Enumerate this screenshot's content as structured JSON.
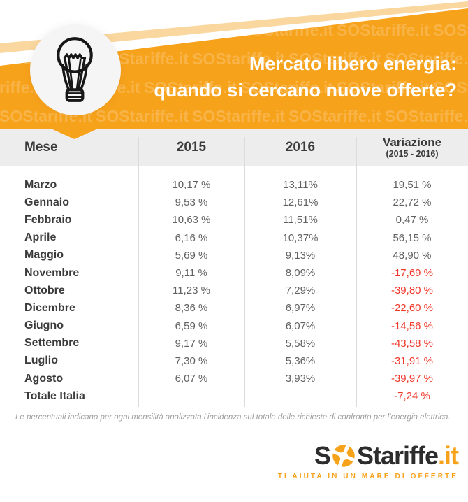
{
  "banner": {
    "title_line1": "Mercato libero energia:",
    "title_line2": "quando si cercano nuove offerte?",
    "watermark": {
      "text": "SOStariffe.it",
      "rows": 4,
      "cols": 6
    }
  },
  "colors": {
    "orange": "#F7A21B",
    "pale_orange": "#FAD79E",
    "header_bg": "#EDEDED",
    "dark_text": "#3B3B3B",
    "value_text": "#616161",
    "negative_red": "#EF382A",
    "footnote_text": "#9C9C9C",
    "logo_dark": "#2D2D2D"
  },
  "table": {
    "header": {
      "mese": "Mese",
      "y2015": "2015",
      "y2016": "2016",
      "variazione": "Variazione",
      "variazione_sub": "(2015 - 2016)"
    },
    "rows": [
      {
        "mese": "Marzo",
        "v2015": "10,17 %",
        "v2016": "13,11%",
        "variazione": "19,51 %",
        "negative": false
      },
      {
        "mese": "Gennaio",
        "v2015": "9,53 %",
        "v2016": "12,61%",
        "variazione": "22,72 %",
        "negative": false
      },
      {
        "mese": "Febbraio",
        "v2015": "10,63 %",
        "v2016": "11,51%",
        "variazione": "0,47 %",
        "negative": false
      },
      {
        "mese": "Aprile",
        "v2015": "6,16 %",
        "v2016": "10,37%",
        "variazione": "56,15 %",
        "negative": false
      },
      {
        "mese": "Maggio",
        "v2015": "5,69 %",
        "v2016": "9,13%",
        "variazione": "48,90 %",
        "negative": false
      },
      {
        "mese": "Novembre",
        "v2015": "9,11 %",
        "v2016": "8,09%",
        "variazione": "-17,69 %",
        "negative": true
      },
      {
        "mese": "Ottobre",
        "v2015": "11,23 %",
        "v2016": "7,29%",
        "variazione": "-39,80 %",
        "negative": true
      },
      {
        "mese": "Dicembre",
        "v2015": "8,36 %",
        "v2016": "6,97%",
        "variazione": "-22,60 %",
        "negative": true
      },
      {
        "mese": "Giugno",
        "v2015": "6,59 %",
        "v2016": "6,07%",
        "variazione": "-14,56 %",
        "negative": true
      },
      {
        "mese": "Settembre",
        "v2015": "9,17 %",
        "v2016": "5,58%",
        "variazione": "-43,58 %",
        "negative": true
      },
      {
        "mese": "Luglio",
        "v2015": "7,30 %",
        "v2016": "5,36%",
        "variazione": "-31,91 %",
        "negative": true
      },
      {
        "mese": "Agosto",
        "v2015": "6,07 %",
        "v2016": "3,93%",
        "variazione": "-39,97 %",
        "negative": true
      },
      {
        "mese": "Totale Italia",
        "v2015": "",
        "v2016": "",
        "variazione": "-7,24 %",
        "negative": true
      }
    ]
  },
  "footnote": "Le percentuali indicano per ogni mensilità analizzata l’incidenza sul totale delle richieste di confronto per l’energia elettrica.",
  "logo": {
    "part1": "S",
    "part2": "S",
    "part3": "tariffe",
    "part4": ".it",
    "tagline": "TI AIUTA IN UN MARE DI OFFERTE"
  },
  "chart_data": {
    "type": "table",
    "title": "Mercato libero energia: quando si cercano nuove offerte?",
    "columns": [
      "Mese",
      "2015",
      "2016",
      "Variazione (2015 - 2016)"
    ],
    "categories": [
      "Marzo",
      "Gennaio",
      "Febbraio",
      "Aprile",
      "Maggio",
      "Novembre",
      "Ottobre",
      "Dicembre",
      "Giugno",
      "Settembre",
      "Luglio",
      "Agosto",
      "Totale Italia"
    ],
    "series": [
      {
        "name": "2015",
        "values": [
          10.17,
          9.53,
          10.63,
          6.16,
          5.69,
          9.11,
          11.23,
          8.36,
          6.59,
          9.17,
          7.3,
          6.07,
          null
        ]
      },
      {
        "name": "2016",
        "values": [
          13.11,
          12.61,
          11.51,
          10.37,
          9.13,
          8.09,
          7.29,
          6.97,
          6.07,
          5.58,
          5.36,
          3.93,
          null
        ]
      },
      {
        "name": "Variazione (2015 - 2016)",
        "values": [
          19.51,
          22.72,
          0.47,
          56.15,
          48.9,
          -17.69,
          -39.8,
          -22.6,
          -14.56,
          -43.58,
          -31.91,
          -39.97,
          -7.24
        ]
      }
    ],
    "unit": "%",
    "footnote": "Le percentuali indicano per ogni mensilità analizzata l’incidenza sul totale delle richieste di confronto per l’energia elettrica."
  }
}
